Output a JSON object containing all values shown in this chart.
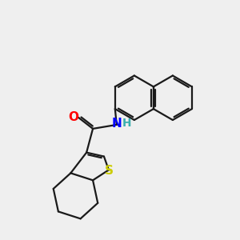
{
  "background_color": "#efefef",
  "bond_color": "#1a1a1a",
  "atom_colors": {
    "O": "#ff0000",
    "N": "#0000ff",
    "S": "#cccc00",
    "H": "#3aafaf",
    "C": "#1a1a1a"
  },
  "figsize": [
    3.0,
    3.0
  ],
  "dpi": 100
}
